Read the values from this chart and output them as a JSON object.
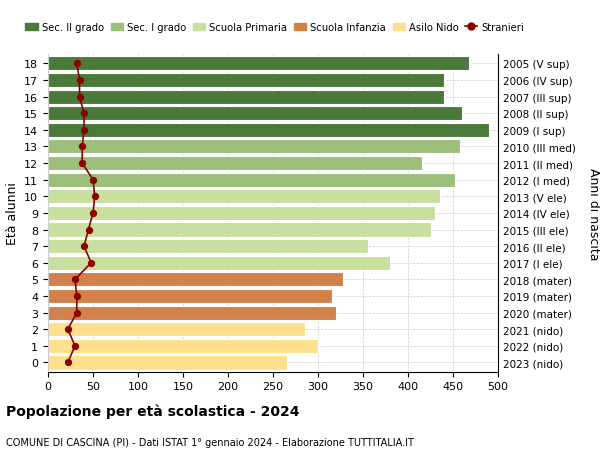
{
  "ages": [
    0,
    1,
    2,
    3,
    4,
    5,
    6,
    7,
    8,
    9,
    10,
    11,
    12,
    13,
    14,
    15,
    16,
    17,
    18
  ],
  "bar_values": [
    265,
    300,
    285,
    320,
    315,
    328,
    380,
    355,
    425,
    430,
    435,
    452,
    415,
    458,
    490,
    460,
    440,
    440,
    468
  ],
  "bar_colors": [
    "#FFE08A",
    "#FFE08A",
    "#FFE08A",
    "#D2814B",
    "#D2814B",
    "#D2814B",
    "#C8DFA0",
    "#C8DFA0",
    "#C8DFA0",
    "#C8DFA0",
    "#C8DFA0",
    "#9BBF7A",
    "#9BBF7A",
    "#9BBF7A",
    "#4A7A3A",
    "#4A7A3A",
    "#4A7A3A",
    "#4A7A3A",
    "#4A7A3A"
  ],
  "stranieri_values": [
    22,
    30,
    22,
    32,
    32,
    30,
    48,
    40,
    45,
    50,
    52,
    50,
    38,
    38,
    40,
    40,
    35,
    35,
    32
  ],
  "right_labels": [
    "2023 (nido)",
    "2022 (nido)",
    "2021 (nido)",
    "2020 (mater)",
    "2019 (mater)",
    "2018 (mater)",
    "2017 (I ele)",
    "2016 (II ele)",
    "2015 (III ele)",
    "2014 (IV ele)",
    "2013 (V ele)",
    "2012 (I med)",
    "2011 (II med)",
    "2010 (III med)",
    "2009 (I sup)",
    "2008 (II sup)",
    "2007 (III sup)",
    "2006 (IV sup)",
    "2005 (V sup)"
  ],
  "ylabel_left": "Età alunni",
  "ylabel_right": "Anni di nascita",
  "title": "Popolazione per età scolastica - 2024",
  "subtitle": "COMUNE DI CASCINA (PI) - Dati ISTAT 1° gennaio 2024 - Elaborazione TUTTITALIA.IT",
  "xlim": [
    0,
    500
  ],
  "xticks": [
    0,
    50,
    100,
    150,
    200,
    250,
    300,
    350,
    400,
    450,
    500
  ],
  "legend_labels": [
    "Sec. II grado",
    "Sec. I grado",
    "Scuola Primaria",
    "Scuola Infanzia",
    "Asilo Nido",
    "Stranieri"
  ],
  "legend_colors": [
    "#4A7A3A",
    "#9BBF7A",
    "#C8DFA0",
    "#D2814B",
    "#FFE08A",
    "#8B0000"
  ],
  "background_color": "#FFFFFF",
  "grid_color": "#CCCCCC",
  "bar_height": 0.85
}
